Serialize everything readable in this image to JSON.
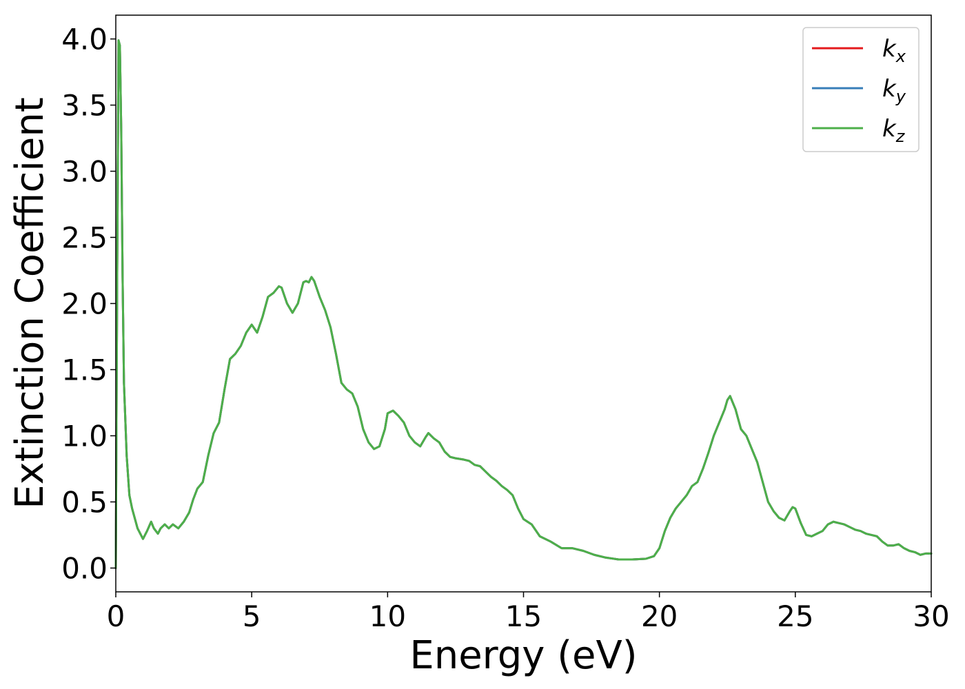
{
  "chart_data": {
    "type": "line",
    "title": "",
    "xlabel": "Energy (eV)",
    "ylabel": "Extinction Coefficient",
    "xlim": [
      0,
      30
    ],
    "ylim": [
      -0.18,
      4.18
    ],
    "xticks": [
      0,
      5,
      10,
      15,
      20,
      25,
      30
    ],
    "xtick_labels": [
      "0",
      "5",
      "10",
      "15",
      "20",
      "25",
      "30"
    ],
    "yticks": [
      0.0,
      0.5,
      1.0,
      1.5,
      2.0,
      2.5,
      3.0,
      3.5,
      4.0
    ],
    "ytick_labels": [
      "0.0",
      "0.5",
      "1.0",
      "1.5",
      "2.0",
      "2.5",
      "3.0",
      "3.5",
      "4.0"
    ],
    "grid": false,
    "legend": "top-right",
    "colors": {
      "kx": "#e41a1c",
      "ky": "#377eb8",
      "kz": "#4daf4a"
    },
    "series_shared_x": [
      0,
      0.05,
      0.1,
      0.15,
      0.2,
      0.25,
      0.3,
      0.4,
      0.5,
      0.6,
      0.8,
      1.0,
      1.15,
      1.3,
      1.4,
      1.55,
      1.65,
      1.8,
      1.95,
      2.1,
      2.3,
      2.5,
      2.7,
      2.85,
      3.0,
      3.2,
      3.4,
      3.6,
      3.8,
      4.0,
      4.2,
      4.4,
      4.6,
      4.8,
      5.0,
      5.2,
      5.4,
      5.6,
      5.8,
      6.0,
      6.1,
      6.3,
      6.5,
      6.7,
      6.9,
      7.0,
      7.1,
      7.2,
      7.3,
      7.5,
      7.7,
      7.9,
      8.1,
      8.3,
      8.5,
      8.7,
      8.9,
      9.1,
      9.3,
      9.5,
      9.7,
      9.9,
      10.0,
      10.2,
      10.4,
      10.6,
      10.8,
      11.0,
      11.2,
      11.4,
      11.5,
      11.7,
      11.9,
      12.1,
      12.3,
      12.5,
      12.8,
      13.0,
      13.2,
      13.4,
      13.6,
      13.8,
      14.0,
      14.2,
      14.4,
      14.6,
      14.8,
      15.0,
      15.3,
      15.6,
      16.0,
      16.4,
      16.8,
      17.2,
      17.6,
      18.0,
      18.5,
      19.0,
      19.5,
      19.8,
      20.0,
      20.2,
      20.4,
      20.6,
      20.8,
      21.0,
      21.2,
      21.4,
      21.6,
      21.8,
      22.0,
      22.2,
      22.4,
      22.5,
      22.6,
      22.8,
      23.0,
      23.2,
      23.4,
      23.6,
      23.8,
      24.0,
      24.2,
      24.4,
      24.6,
      24.8,
      24.9,
      25.0,
      25.2,
      25.4,
      25.6,
      25.8,
      26.0,
      26.2,
      26.4,
      26.6,
      26.8,
      27.0,
      27.2,
      27.4,
      27.6,
      27.8,
      28.0,
      28.2,
      28.4,
      28.6,
      28.8,
      29.0,
      29.2,
      29.4,
      29.6,
      29.8,
      30.0
    ],
    "series": [
      {
        "name": "k_x",
        "label_main": "k",
        "label_sub": "x",
        "color": "#e41a1c",
        "values": [
          0.0,
          2.2,
          3.99,
          3.95,
          3.3,
          2.2,
          1.4,
          0.85,
          0.55,
          0.45,
          0.3,
          0.22,
          0.28,
          0.35,
          0.3,
          0.26,
          0.3,
          0.33,
          0.3,
          0.33,
          0.3,
          0.35,
          0.42,
          0.52,
          0.6,
          0.65,
          0.85,
          1.02,
          1.1,
          1.35,
          1.58,
          1.62,
          1.68,
          1.78,
          1.84,
          1.78,
          1.9,
          2.05,
          2.08,
          2.13,
          2.12,
          2.0,
          1.93,
          2.0,
          2.16,
          2.17,
          2.16,
          2.2,
          2.17,
          2.05,
          1.95,
          1.82,
          1.62,
          1.4,
          1.35,
          1.32,
          1.22,
          1.05,
          0.95,
          0.9,
          0.92,
          1.05,
          1.17,
          1.19,
          1.15,
          1.1,
          1.0,
          0.95,
          0.92,
          0.99,
          1.02,
          0.98,
          0.95,
          0.88,
          0.84,
          0.83,
          0.82,
          0.81,
          0.78,
          0.77,
          0.73,
          0.69,
          0.66,
          0.62,
          0.59,
          0.55,
          0.45,
          0.37,
          0.33,
          0.24,
          0.2,
          0.15,
          0.15,
          0.13,
          0.1,
          0.08,
          0.065,
          0.065,
          0.07,
          0.09,
          0.15,
          0.28,
          0.38,
          0.45,
          0.5,
          0.55,
          0.62,
          0.65,
          0.75,
          0.87,
          1.0,
          1.1,
          1.2,
          1.27,
          1.3,
          1.2,
          1.05,
          1.0,
          0.9,
          0.8,
          0.65,
          0.5,
          0.43,
          0.38,
          0.36,
          0.43,
          0.46,
          0.45,
          0.34,
          0.25,
          0.24,
          0.26,
          0.28,
          0.33,
          0.35,
          0.34,
          0.33,
          0.31,
          0.29,
          0.28,
          0.26,
          0.25,
          0.24,
          0.2,
          0.17,
          0.17,
          0.18,
          0.15,
          0.13,
          0.12,
          0.1,
          0.11,
          0.11
        ]
      },
      {
        "name": "k_y",
        "label_main": "k",
        "label_sub": "y",
        "color": "#377eb8",
        "values": [
          0.0,
          2.2,
          3.99,
          3.95,
          3.3,
          2.2,
          1.4,
          0.85,
          0.55,
          0.45,
          0.3,
          0.22,
          0.28,
          0.35,
          0.3,
          0.26,
          0.3,
          0.33,
          0.3,
          0.33,
          0.3,
          0.35,
          0.42,
          0.52,
          0.6,
          0.65,
          0.85,
          1.02,
          1.1,
          1.35,
          1.58,
          1.62,
          1.68,
          1.78,
          1.84,
          1.78,
          1.9,
          2.05,
          2.08,
          2.13,
          2.12,
          2.0,
          1.93,
          2.0,
          2.16,
          2.17,
          2.16,
          2.2,
          2.17,
          2.05,
          1.95,
          1.82,
          1.62,
          1.4,
          1.35,
          1.32,
          1.22,
          1.05,
          0.95,
          0.9,
          0.92,
          1.05,
          1.17,
          1.19,
          1.15,
          1.1,
          1.0,
          0.95,
          0.92,
          0.99,
          1.02,
          0.98,
          0.95,
          0.88,
          0.84,
          0.83,
          0.82,
          0.81,
          0.78,
          0.77,
          0.73,
          0.69,
          0.66,
          0.62,
          0.59,
          0.55,
          0.45,
          0.37,
          0.33,
          0.24,
          0.2,
          0.15,
          0.15,
          0.13,
          0.1,
          0.08,
          0.065,
          0.065,
          0.07,
          0.09,
          0.15,
          0.28,
          0.38,
          0.45,
          0.5,
          0.55,
          0.62,
          0.65,
          0.75,
          0.87,
          1.0,
          1.1,
          1.2,
          1.27,
          1.3,
          1.2,
          1.05,
          1.0,
          0.9,
          0.8,
          0.65,
          0.5,
          0.43,
          0.38,
          0.36,
          0.43,
          0.46,
          0.45,
          0.34,
          0.25,
          0.24,
          0.26,
          0.28,
          0.33,
          0.35,
          0.34,
          0.33,
          0.31,
          0.29,
          0.28,
          0.26,
          0.25,
          0.24,
          0.2,
          0.17,
          0.17,
          0.18,
          0.15,
          0.13,
          0.12,
          0.1,
          0.11,
          0.11
        ]
      },
      {
        "name": "k_z",
        "label_main": "k",
        "label_sub": "z",
        "color": "#4daf4a",
        "values": [
          0.0,
          2.2,
          3.99,
          3.95,
          3.3,
          2.2,
          1.4,
          0.85,
          0.55,
          0.45,
          0.3,
          0.22,
          0.28,
          0.35,
          0.3,
          0.26,
          0.3,
          0.33,
          0.3,
          0.33,
          0.3,
          0.35,
          0.42,
          0.52,
          0.6,
          0.65,
          0.85,
          1.02,
          1.1,
          1.35,
          1.58,
          1.62,
          1.68,
          1.78,
          1.84,
          1.78,
          1.9,
          2.05,
          2.08,
          2.13,
          2.12,
          2.0,
          1.93,
          2.0,
          2.16,
          2.17,
          2.16,
          2.2,
          2.17,
          2.05,
          1.95,
          1.82,
          1.62,
          1.4,
          1.35,
          1.32,
          1.22,
          1.05,
          0.95,
          0.9,
          0.92,
          1.05,
          1.17,
          1.19,
          1.15,
          1.1,
          1.0,
          0.95,
          0.92,
          0.99,
          1.02,
          0.98,
          0.95,
          0.88,
          0.84,
          0.83,
          0.82,
          0.81,
          0.78,
          0.77,
          0.73,
          0.69,
          0.66,
          0.62,
          0.59,
          0.55,
          0.45,
          0.37,
          0.33,
          0.24,
          0.2,
          0.15,
          0.15,
          0.13,
          0.1,
          0.08,
          0.065,
          0.065,
          0.07,
          0.09,
          0.15,
          0.28,
          0.38,
          0.45,
          0.5,
          0.55,
          0.62,
          0.65,
          0.75,
          0.87,
          1.0,
          1.1,
          1.2,
          1.27,
          1.3,
          1.2,
          1.05,
          1.0,
          0.9,
          0.8,
          0.65,
          0.5,
          0.43,
          0.38,
          0.36,
          0.43,
          0.46,
          0.45,
          0.34,
          0.25,
          0.24,
          0.26,
          0.28,
          0.33,
          0.35,
          0.34,
          0.33,
          0.31,
          0.29,
          0.28,
          0.26,
          0.25,
          0.24,
          0.2,
          0.17,
          0.17,
          0.18,
          0.15,
          0.13,
          0.12,
          0.1,
          0.11,
          0.11
        ]
      }
    ]
  }
}
